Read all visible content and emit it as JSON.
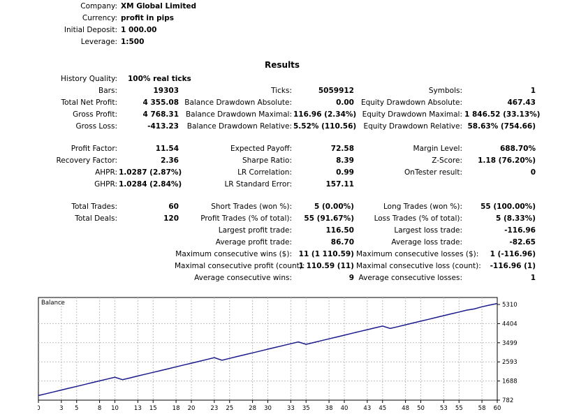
{
  "header": {
    "company_label": "Company:",
    "company_value": "XM Global Limited",
    "currency_label": "Currency:",
    "currency_value": "profit in pips",
    "deposit_label": "Initial Deposit:",
    "deposit_value": "1 000.00",
    "leverage_label": "Leverage:",
    "leverage_value": "1:500"
  },
  "results_title": "Results",
  "col1": {
    "history_quality": {
      "label": "History Quality:",
      "value": "100% real ticks"
    },
    "bars": {
      "label": "Bars:",
      "value": "19303"
    },
    "total_net_profit": {
      "label": "Total Net Profit:",
      "value": "4 355.08"
    },
    "gross_profit": {
      "label": "Gross Profit:",
      "value": "4 768.31"
    },
    "gross_loss": {
      "label": "Gross Loss:",
      "value": "-413.23"
    },
    "profit_factor": {
      "label": "Profit Factor:",
      "value": "11.54"
    },
    "recovery_factor": {
      "label": "Recovery Factor:",
      "value": "2.36"
    },
    "ahpr": {
      "label": "AHPR:",
      "value": "1.0287 (2.87%)"
    },
    "ghpr": {
      "label": "GHPR:",
      "value": "1.0284 (2.84%)"
    },
    "total_trades": {
      "label": "Total Trades:",
      "value": "60"
    },
    "total_deals": {
      "label": "Total Deals:",
      "value": "120"
    }
  },
  "col2": {
    "ticks": {
      "label": "Ticks:",
      "value": "5059912"
    },
    "balance_dd_abs": {
      "label": "Balance Drawdown Absolute:",
      "value": "0.00"
    },
    "balance_dd_max": {
      "label": "Balance Drawdown Maximal:",
      "value": "116.96 (2.34%)"
    },
    "balance_dd_rel": {
      "label": "Balance Drawdown Relative:",
      "value": "5.52% (110.56)"
    },
    "expected_payoff": {
      "label": "Expected Payoff:",
      "value": "72.58"
    },
    "sharpe_ratio": {
      "label": "Sharpe Ratio:",
      "value": "8.39"
    },
    "lr_correlation": {
      "label": "LR Correlation:",
      "value": "0.99"
    },
    "lr_std_error": {
      "label": "LR Standard Error:",
      "value": "157.11"
    },
    "short_trades": {
      "label": "Short Trades (won %):",
      "value": "5 (0.00%)"
    },
    "profit_trades": {
      "label": "Profit Trades (% of total):",
      "value": "55 (91.67%)"
    },
    "largest_profit": {
      "label": "Largest profit trade:",
      "value": "116.50"
    },
    "average_profit": {
      "label": "Average profit trade:",
      "value": "86.70"
    },
    "max_consec_wins": {
      "label": "Maximum consecutive wins ($):",
      "value": "11 (1 110.59)"
    },
    "maximal_consec_profit": {
      "label": "Maximal consecutive profit (count):",
      "value": "1 110.59 (11)"
    },
    "avg_consec_wins": {
      "label": "Average consecutive wins:",
      "value": "9"
    }
  },
  "col3": {
    "symbols": {
      "label": "Symbols:",
      "value": "1"
    },
    "equity_dd_abs": {
      "label": "Equity Drawdown Absolute:",
      "value": "467.43"
    },
    "equity_dd_max": {
      "label": "Equity Drawdown Maximal:",
      "value": "1 846.52 (33.13%)"
    },
    "equity_dd_rel": {
      "label": "Equity Drawdown Relative:",
      "value": "58.63% (754.66)"
    },
    "margin_level": {
      "label": "Margin Level:",
      "value": "688.70%"
    },
    "z_score": {
      "label": "Z-Score:",
      "value": "1.18 (76.20%)"
    },
    "ontester": {
      "label": "OnTester result:",
      "value": "0"
    },
    "long_trades": {
      "label": "Long Trades (won %):",
      "value": "55 (100.00%)"
    },
    "loss_trades": {
      "label": "Loss Trades (% of total):",
      "value": "5 (8.33%)"
    },
    "largest_loss": {
      "label": "Largest loss trade:",
      "value": "-116.96"
    },
    "average_loss": {
      "label": "Average loss trade:",
      "value": "-82.65"
    },
    "max_consec_losses": {
      "label": "Maximum consecutive losses ($):",
      "value": "1 (-116.96)"
    },
    "maximal_consec_loss": {
      "label": "Maximal consecutive loss (count):",
      "value": "-116.96 (1)"
    },
    "avg_consec_losses": {
      "label": "Average consecutive losses:",
      "value": "1"
    }
  },
  "chart_data": {
    "type": "line",
    "legend": "Balance",
    "line_color": "#1a1a8c",
    "grid": true,
    "xlim": [
      0,
      60
    ],
    "ylim": [
      782,
      5310
    ],
    "x_ticks": [
      0,
      3,
      5,
      8,
      10,
      13,
      15,
      18,
      20,
      23,
      25,
      28,
      30,
      33,
      35,
      38,
      40,
      43,
      45,
      48,
      50,
      53,
      55,
      58,
      60
    ],
    "y_ticks": [
      "5310",
      "4404",
      "3499",
      "2593",
      "1688",
      "782"
    ],
    "series": [
      {
        "x": [
          0,
          1,
          2,
          3,
          4,
          5,
          6,
          7,
          8,
          9,
          10,
          11,
          12,
          13,
          14,
          15,
          16,
          17,
          18,
          19,
          20,
          21,
          22,
          23,
          24,
          25,
          26,
          27,
          28,
          29,
          30,
          31,
          32,
          33,
          34,
          35,
          36,
          37,
          38,
          39,
          40,
          41,
          42,
          43,
          44,
          45,
          46,
          47,
          48,
          49,
          50,
          51,
          52,
          53,
          54,
          55,
          56,
          57,
          58,
          59,
          60
        ],
        "values": [
          1000,
          1087,
          1173,
          1260,
          1347,
          1433,
          1520,
          1607,
          1694,
          1780,
          1867,
          1750,
          1837,
          1924,
          2010,
          2097,
          2184,
          2270,
          2357,
          2444,
          2530,
          2617,
          2704,
          2790,
          2673,
          2760,
          2847,
          2934,
          3020,
          3107,
          3194,
          3280,
          3367,
          3454,
          3540,
          3424,
          3510,
          3597,
          3684,
          3770,
          3857,
          3944,
          4030,
          4117,
          4204,
          4290,
          4174,
          4260,
          4347,
          4434,
          4521,
          4607,
          4694,
          4781,
          4867,
          4954,
          5041,
          5100,
          5200,
          5280,
          5355
        ]
      }
    ]
  }
}
